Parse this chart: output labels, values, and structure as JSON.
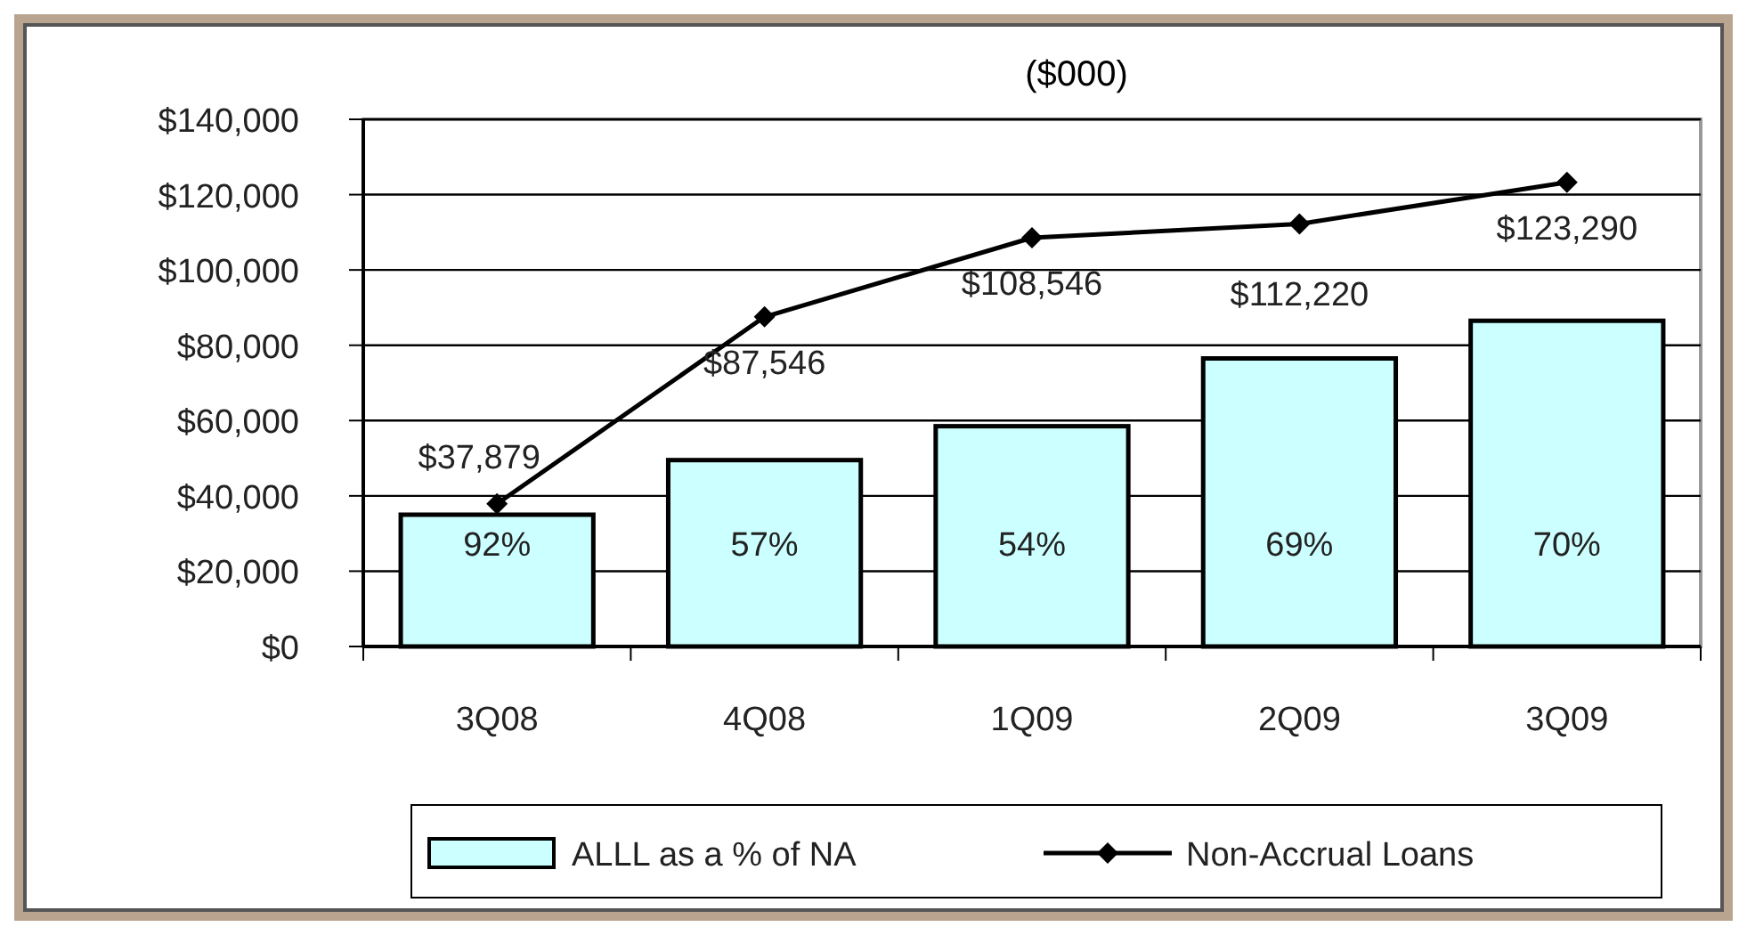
{
  "chart_data": {
    "type": "bar",
    "title": "($000)",
    "categories": [
      "3Q08",
      "4Q08",
      "1Q09",
      "2Q09",
      "3Q09"
    ],
    "series": [
      {
        "name": "ALLL as a % of NA",
        "type": "bar",
        "color": "#ccffff",
        "values": [
          35000,
          49500,
          58500,
          76500,
          86500
        ]
      },
      {
        "name": "Non-Accrual Loans",
        "type": "line",
        "color": "#000000",
        "values": [
          37879,
          87546,
          108546,
          112220,
          123290
        ],
        "value_labels": [
          "$37,879",
          "$87,546",
          "$108,546",
          "$112,220",
          "$123,290"
        ],
        "marker": "diamond"
      }
    ],
    "ylim": [
      0,
      140000
    ],
    "yticks": [
      {
        "value": 0,
        "label": "$0"
      },
      {
        "value": 20000,
        "label": "$20,000"
      },
      {
        "value": 40000,
        "label": "$40,000"
      },
      {
        "value": 60000,
        "label": "$60,000"
      },
      {
        "value": 80000,
        "label": "$80,000"
      },
      {
        "value": 100000,
        "label": "$100,000"
      },
      {
        "value": 120000,
        "label": "$120,000"
      },
      {
        "value": 140000,
        "label": "$140,000"
      }
    ],
    "annotations": [
      "92%",
      "57%",
      "54%",
      "69%",
      "70%"
    ],
    "grid": "y",
    "legend": "bottom"
  }
}
